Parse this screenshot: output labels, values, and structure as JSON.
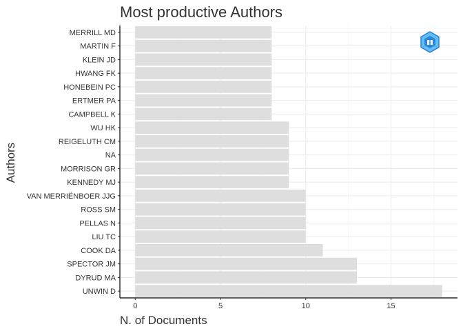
{
  "chart_data": {
    "type": "bar",
    "orientation": "horizontal",
    "title": "Most productive Authors",
    "xlabel": "N. of Documents",
    "ylabel": "Authors",
    "xlim": [
      0,
      18
    ],
    "xticks": [
      0,
      5,
      10,
      15
    ],
    "grid": true,
    "legend": "none",
    "bar_color": "#dedede",
    "categories": [
      "MERRILL MD",
      "MARTIN F",
      "KLEIN JD",
      "HWANG FK",
      "HONEBEIN PC",
      "ERTMER PA",
      "CAMPBELL K",
      "WU HK",
      "REIGELUTH CM",
      "NA",
      "MORRISON GR",
      "KENNEDY MJ",
      "VAN MERRIËNBOER JJG",
      "ROSS SM",
      "PELLAS N",
      "LIU TC",
      "COOK DA",
      "SPECTOR JM",
      "DYRUD MA",
      "UNWIN D"
    ],
    "values": [
      8,
      8,
      8,
      8,
      8,
      8,
      8,
      9,
      9,
      9,
      9,
      9,
      10,
      10,
      10,
      10,
      11,
      13,
      13,
      18
    ]
  },
  "logo": {
    "name": "bibliometrix-logo-icon",
    "color": "#4fb3f6"
  }
}
